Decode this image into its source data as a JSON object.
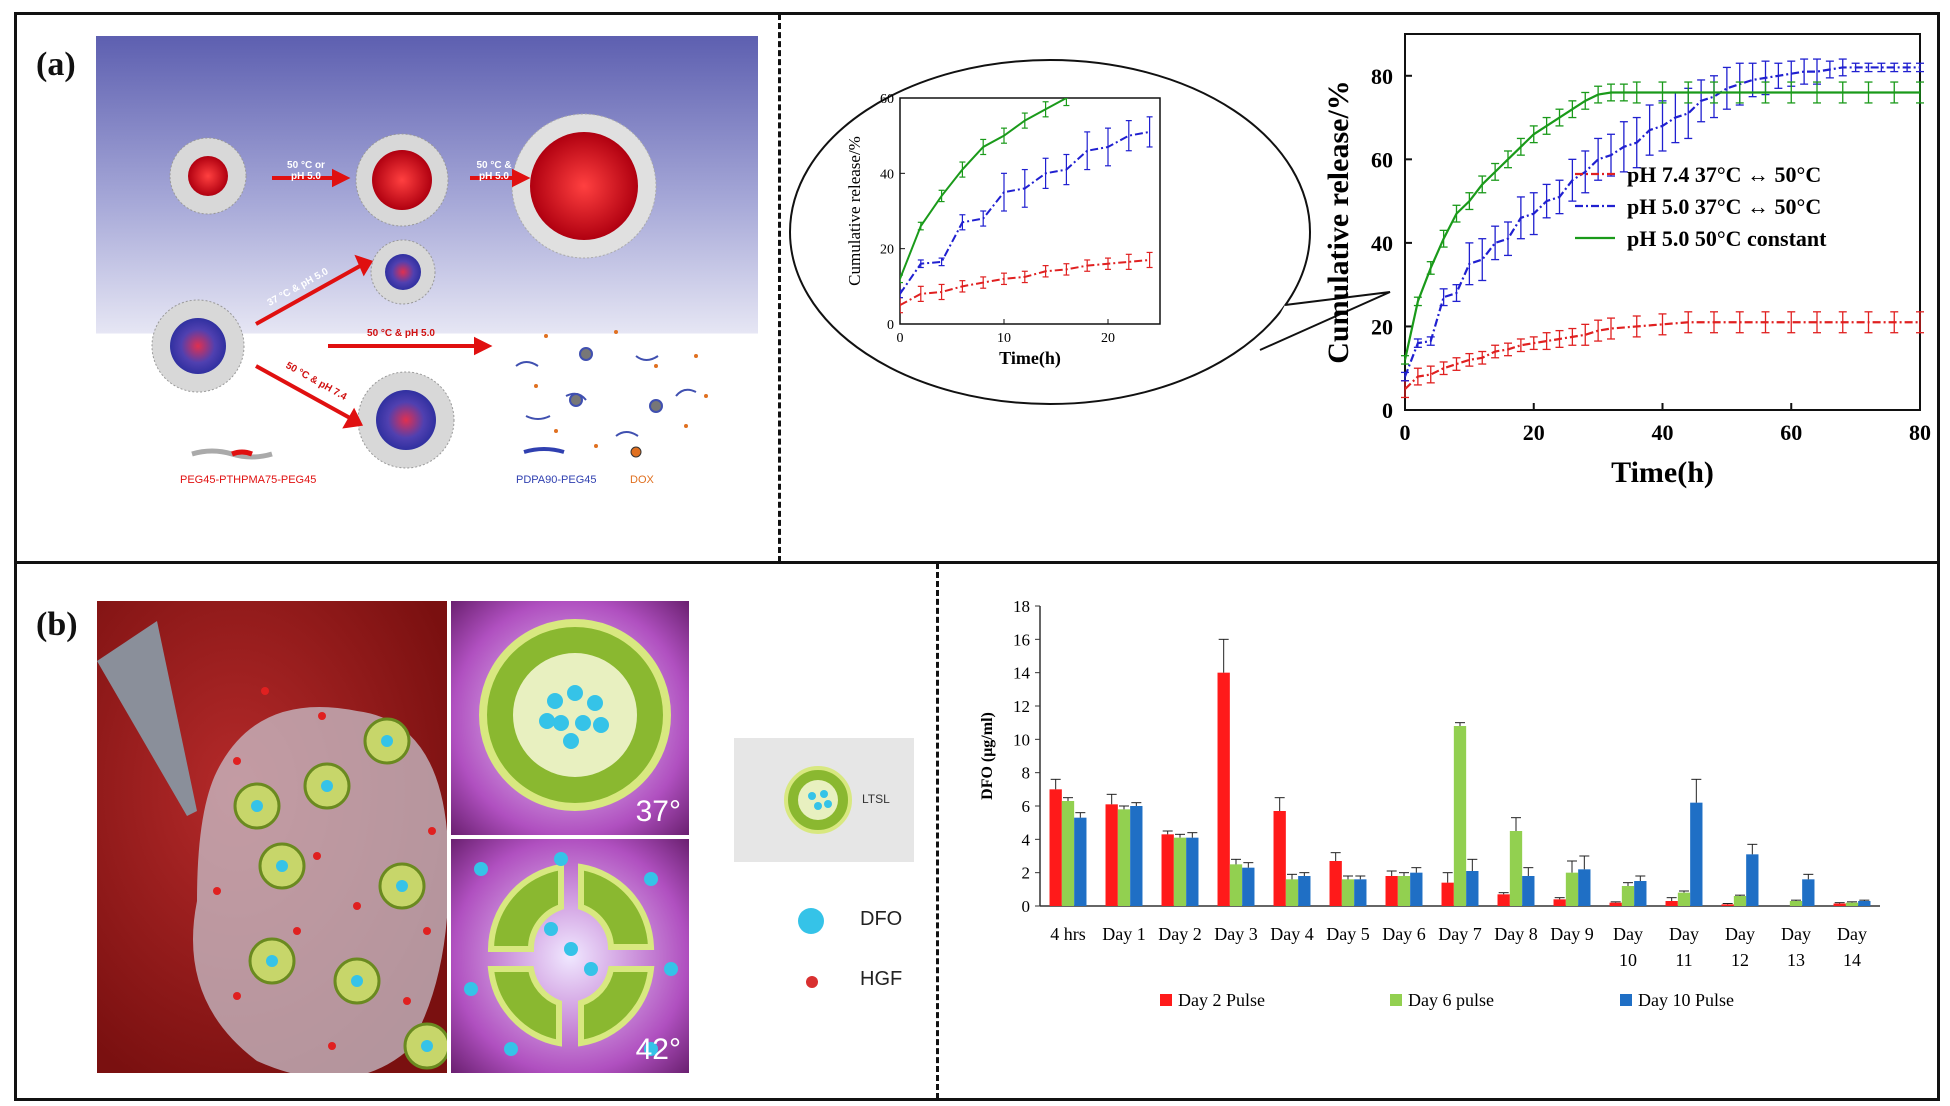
{
  "panel_labels": {
    "a": "(a)",
    "b": "(b)"
  },
  "scheme_a": {
    "arrow1": "50 °C or\npH 5.0",
    "arrow2": "50 °C &\npH 5.0",
    "arrow3": "37 °C & pH 5.0",
    "arrow4": "50 °C & pH 5.0",
    "arrow5": "50 °C & pH 7.4",
    "legend_peg_pthpma": "PEG45-PTHPMA75-PEG45",
    "legend_pdpa": "PDPA90-PEG45",
    "legend_dox": "DOX"
  },
  "scheme_b": {
    "temp_low": "37°",
    "temp_high": "42°",
    "ltsl_label": "LTSL",
    "legend_dfo": "DFO",
    "legend_hgf": "HGF",
    "colors": {
      "dfo": "#35c3e8",
      "hgf": "#d93030"
    }
  },
  "chart_data": [
    {
      "id": "release-main",
      "type": "line",
      "title": "",
      "xlabel": "Time(h)",
      "ylabel": "Cumulative release/%",
      "xlim": [
        0,
        80
      ],
      "ylim": [
        0,
        90
      ],
      "xticks": [
        "0",
        "20",
        "40",
        "60",
        "80"
      ],
      "yticks": [
        "0",
        "20",
        "40",
        "60",
        "80"
      ],
      "legend_position": "center-right",
      "series": [
        {
          "name": "pH 7.4 37°C ↔ 50°C",
          "color": "#e02020",
          "style": "dash-dot",
          "x": [
            0,
            2,
            4,
            6,
            8,
            10,
            12,
            14,
            16,
            18,
            20,
            22,
            24,
            26,
            28,
            30,
            32,
            36,
            40,
            44,
            48,
            52,
            56,
            60,
            64,
            68,
            72,
            76,
            80
          ],
          "y": [
            5,
            8,
            8.5,
            10,
            11,
            12,
            12.5,
            14,
            14.5,
            15.5,
            16,
            16.5,
            17,
            17.5,
            18,
            19,
            19.5,
            20,
            20.5,
            21,
            21,
            21,
            21,
            21,
            21,
            21,
            21,
            21,
            21
          ],
          "err": [
            2,
            2,
            2,
            1.5,
            1.5,
            1.5,
            1.5,
            1.5,
            1.5,
            1.5,
            1.5,
            2,
            2,
            2,
            2.5,
            2.5,
            2.5,
            2.5,
            2.5,
            2.5,
            2.5,
            2.5,
            2.5,
            2.5,
            2.5,
            2.5,
            2.5,
            2.5,
            2.5
          ]
        },
        {
          "name": "pH 5.0 37°C ↔ 50°C",
          "color": "#2020d0",
          "style": "dash-dot",
          "x": [
            0,
            2,
            4,
            6,
            8,
            10,
            12,
            14,
            16,
            18,
            20,
            22,
            24,
            26,
            28,
            30,
            32,
            34,
            36,
            38,
            40,
            42,
            44,
            46,
            48,
            50,
            52,
            54,
            56,
            58,
            60,
            62,
            64,
            66,
            68,
            70,
            72,
            74,
            76,
            78,
            80
          ],
          "y": [
            8,
            16,
            16.5,
            27,
            28,
            35,
            36,
            40,
            41,
            46,
            47,
            50,
            51,
            55,
            57,
            60,
            61,
            63,
            64,
            67,
            68,
            70,
            71,
            74,
            75,
            77,
            78,
            79,
            79.5,
            80,
            80.5,
            81,
            81,
            81.5,
            82,
            82,
            82,
            82,
            82,
            82,
            82
          ],
          "err": [
            1,
            1,
            1,
            2,
            2,
            5,
            5,
            4,
            4,
            5,
            5,
            4,
            4,
            5,
            5,
            5,
            5,
            6,
            6,
            6,
            6,
            6,
            6,
            5,
            5,
            5,
            5,
            4,
            4,
            3,
            3,
            3,
            3,
            2,
            2,
            1,
            1,
            1,
            1,
            1,
            1
          ]
        },
        {
          "name": "pH 5.0 50°C constant",
          "color": "#1a9a1a",
          "style": "solid",
          "x": [
            0,
            2,
            4,
            6,
            8,
            10,
            12,
            14,
            16,
            18,
            20,
            22,
            24,
            26,
            28,
            30,
            32,
            34,
            36,
            40,
            44,
            48,
            52,
            56,
            60,
            64,
            68,
            72,
            76,
            80
          ],
          "y": [
            12,
            26,
            34,
            41,
            47,
            50,
            54,
            57,
            60,
            63,
            66,
            68,
            70,
            72,
            74,
            75.5,
            76,
            76,
            76,
            76,
            76,
            76,
            76,
            76,
            76,
            76,
            76,
            76,
            76,
            76
          ],
          "err": [
            1,
            1,
            1.5,
            2,
            2,
            2,
            2,
            2,
            2,
            2,
            2,
            2,
            2,
            2,
            2,
            2,
            2,
            2,
            2.5,
            2.5,
            2.5,
            2.5,
            2.5,
            2.5,
            2.5,
            2.5,
            2.5,
            2.5,
            2.5,
            2.5
          ]
        }
      ]
    },
    {
      "id": "release-inset",
      "type": "line",
      "title": "",
      "xlabel": "Time(h)",
      "ylabel": "Cumulative release/%",
      "xlim": [
        0,
        25
      ],
      "ylim": [
        0,
        60
      ],
      "xticks": [
        "0",
        "10",
        "20"
      ],
      "yticks": [
        "0",
        "20",
        "40",
        "60"
      ],
      "series_ref": "same three series as main chart, zoomed to 0–25 h"
    },
    {
      "id": "dfo-bars",
      "type": "bar",
      "title": "",
      "xlabel": "",
      "ylabel": "DFO (μg/ml)",
      "ylim": [
        0,
        18
      ],
      "yticks": [
        "0",
        "2",
        "4",
        "6",
        "8",
        "10",
        "12",
        "14",
        "16",
        "18"
      ],
      "categories": [
        "4 hrs",
        "Day 1",
        "Day 2",
        "Day 3",
        "Day 4",
        "Day 5",
        "Day 6",
        "Day 7",
        "Day 8",
        "Day 9",
        "Day 10",
        "Day 11",
        "Day 12",
        "Day 13",
        "Day 14"
      ],
      "legend_position": "bottom",
      "series": [
        {
          "name": "Day 2 Pulse",
          "color": "#ff1a1a",
          "values": [
            7.0,
            6.1,
            4.3,
            14.0,
            5.7,
            2.7,
            1.8,
            1.4,
            0.7,
            0.4,
            0.2,
            0.3,
            0.1,
            0.0,
            0.15
          ],
          "err": [
            0.6,
            0.6,
            0.2,
            2.0,
            0.8,
            0.5,
            0.3,
            0.6,
            0.1,
            0.1,
            0.05,
            0.2,
            0.05,
            0.0,
            0.05
          ]
        },
        {
          "name": "Day 6 pulse",
          "color": "#92d050",
          "values": [
            6.3,
            5.8,
            4.1,
            2.5,
            1.6,
            1.6,
            1.8,
            10.8,
            4.5,
            2.0,
            1.2,
            0.8,
            0.6,
            0.3,
            0.2
          ],
          "err": [
            0.2,
            0.2,
            0.2,
            0.3,
            0.3,
            0.2,
            0.2,
            0.2,
            0.8,
            0.7,
            0.2,
            0.1,
            0.05,
            0.05,
            0.05
          ]
        },
        {
          "name": "Day 10 Pulse",
          "color": "#1f6fc5",
          "values": [
            5.3,
            6.0,
            4.1,
            2.3,
            1.8,
            1.6,
            2.0,
            2.1,
            1.8,
            2.2,
            1.5,
            6.2,
            3.1,
            1.6,
            0.3
          ],
          "err": [
            0.3,
            0.2,
            0.3,
            0.3,
            0.2,
            0.2,
            0.3,
            0.7,
            0.5,
            0.8,
            0.3,
            1.4,
            0.6,
            0.3,
            0.05
          ]
        }
      ]
    }
  ]
}
